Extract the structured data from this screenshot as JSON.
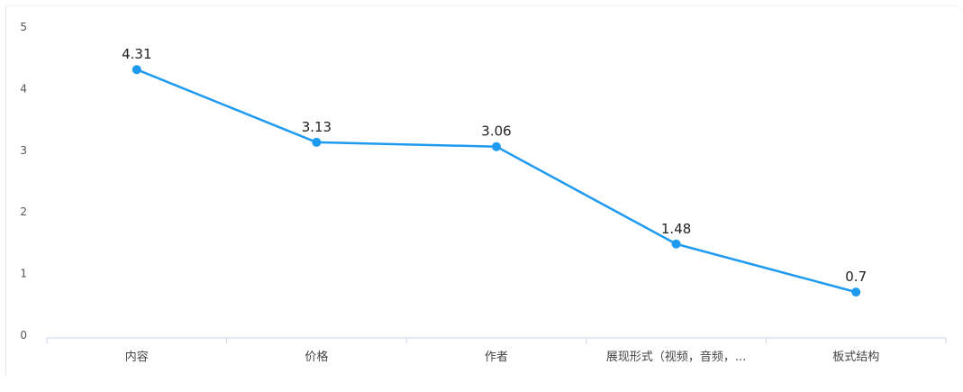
{
  "chart_data": {
    "type": "line",
    "title": "",
    "xlabel": "",
    "ylabel": "",
    "categories": [
      "内容",
      "价格",
      "作者",
      "展现形式（视频，音频，...",
      "板式结构"
    ],
    "series": [
      {
        "values": [
          4.31,
          3.13,
          3.06,
          1.48,
          0.7
        ],
        "data_labels": [
          "4.31",
          "3.13",
          "3.06",
          "1.48",
          "0.7"
        ]
      }
    ],
    "ylim": [
      0,
      5
    ],
    "yticks": [
      "0",
      "1",
      "2",
      "3",
      "4",
      "5"
    ],
    "grid": false,
    "legend": "none",
    "colors": {
      "line": "#1e9bf0",
      "axis": "#c9d6e3"
    }
  }
}
